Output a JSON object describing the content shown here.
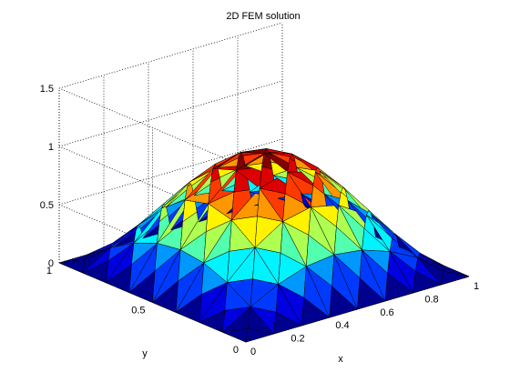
{
  "chart_data": {
    "type": "surface",
    "title": "2D FEM solution",
    "xlabel": "x",
    "ylabel": "y",
    "zlabel": "",
    "xlim": [
      0,
      1
    ],
    "ylim": [
      0,
      1
    ],
    "zlim": [
      0,
      1.5
    ],
    "x_ticks": [
      "0",
      "0.2",
      "0.4",
      "0.6",
      "0.8",
      "1"
    ],
    "y_ticks": [
      "0",
      "0.5",
      "1"
    ],
    "z_ticks": [
      "0",
      "0.5",
      "1",
      "1.5"
    ],
    "grid": true,
    "colormap": "jet",
    "color_range": [
      0,
      1
    ],
    "peak": {
      "x": 0.5,
      "y": 0.5,
      "z": 1.0
    },
    "mesh": "triangular, 8 x 8 subdivisions, zero on boundary",
    "function": "sin(pi*x)*sin(pi*y)"
  }
}
